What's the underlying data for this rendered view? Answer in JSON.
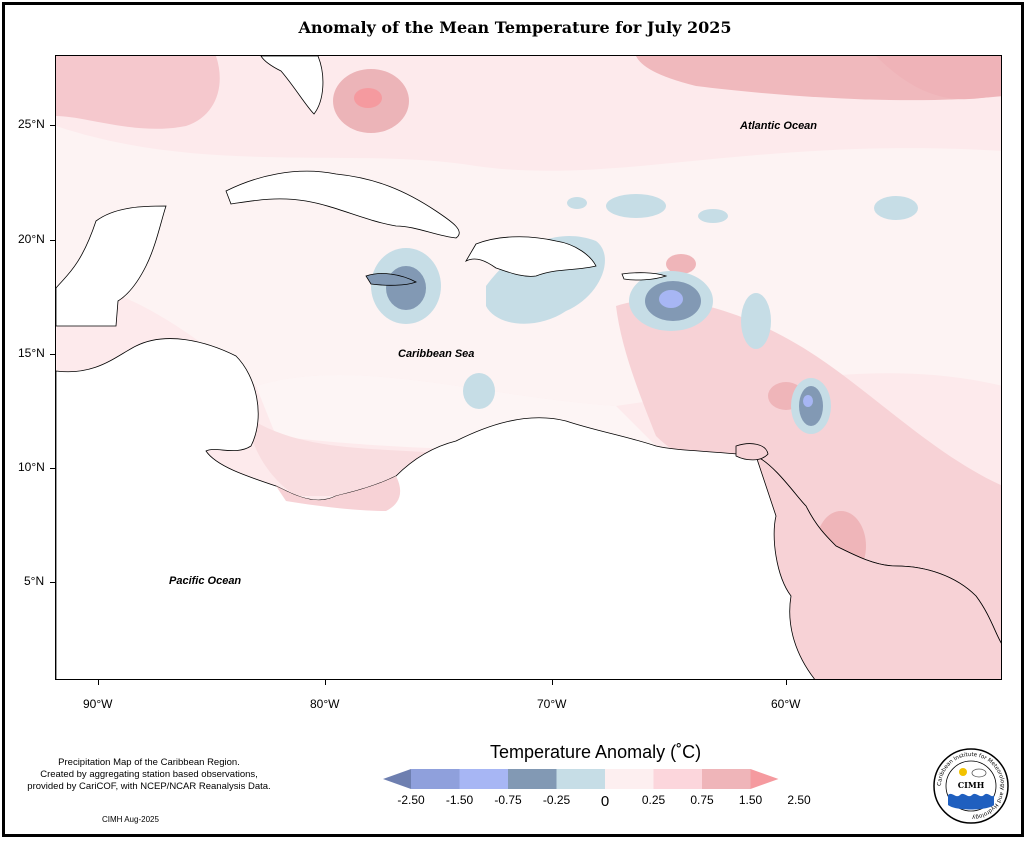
{
  "title": "Anomaly of the Mean Temperature for July 2025",
  "map": {
    "ocean_labels": {
      "atlantic": "Atlantic Ocean",
      "caribbean": "Caribbean Sea",
      "pacific": "Pacific Ocean"
    },
    "lat_ticks": [
      "25°N",
      "20°N",
      "15°N",
      "10°N",
      "5°N"
    ],
    "lon_ticks": [
      "90°W",
      "80°W",
      "70°W",
      "60°W"
    ]
  },
  "legend": {
    "title": "Temperature Anomaly (˚C)",
    "labels": [
      "-2.50",
      "-1.50",
      "-0.75",
      "-0.25",
      "0",
      "0.25",
      "0.75",
      "1.50",
      "2.50"
    ],
    "colors": [
      "#6e7fb0",
      "#8fa0dc",
      "#a7b6f4",
      "#8299b4",
      "#c6dde6",
      "#fdeff0",
      "#fcd6dc",
      "#efb5b9",
      "#f59a9f"
    ]
  },
  "note": {
    "line1": "Precipitation Map of the Caribbean Region.",
    "line2": "Created by aggregating station based observations,",
    "line3": "provided by CariCOF, with NCEP/NCAR Reanalysis Data."
  },
  "credit": "CIMH Aug-2025",
  "logo": {
    "ring_text": "Caribbean Institute for Meteorology and Hydrology",
    "name": "CIMH"
  }
}
